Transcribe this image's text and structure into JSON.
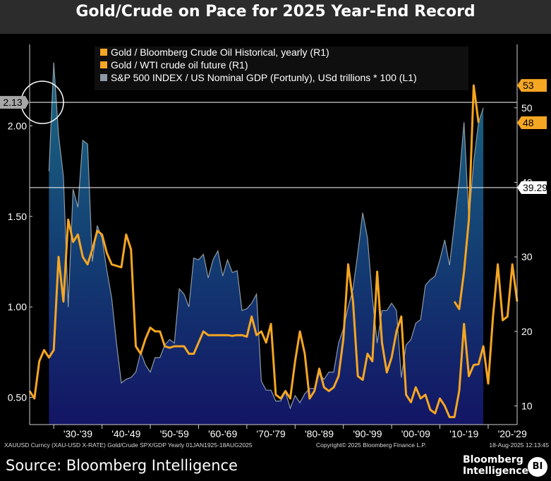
{
  "title": "Gold/Crude on Pace for 2025 Year-End Record",
  "chart_data": {
    "type": "area",
    "x_tick_labels": [
      "'30-'39",
      "'40-'49",
      "'50-'59",
      "'60-'69",
      "'70-'79",
      "'80-'89",
      "'90-'99",
      "'00-'09",
      "'10-'19",
      "'20-'29"
    ],
    "left_axis": {
      "ticks": [
        0.5,
        1.0,
        1.5,
        2.0
      ],
      "tick_labels": [
        "0.50",
        "1.00",
        "1.50",
        "2.00"
      ],
      "range": [
        0.35,
        2.45
      ]
    },
    "right_axis": {
      "ticks": [
        10,
        20,
        30,
        40,
        50
      ],
      "tick_labels": [
        "10",
        "20",
        "30",
        "40",
        "50"
      ],
      "range": [
        7.5,
        58.5
      ]
    },
    "legend": [
      {
        "label": "Gold / Bloomberg Crude Oil Historical, yearly (R1)",
        "color": "#f5a623"
      },
      {
        "label": "Gold / WTI crude oil future (R1)",
        "color": "#f5a623"
      },
      {
        "label": "S&P 500 INDEX / US Nominal GDP (Fortunly), USd trillions * 100 (L1)",
        "color": "#8e9aa6"
      }
    ],
    "annotations": {
      "left_marker": "2.13",
      "left_marker_value": 2.13,
      "right_marker_top": "53",
      "right_marker_top_value": 53,
      "right_marker_mid": "48",
      "right_marker_mid_value": 48,
      "right_line_label": "39.29",
      "right_line_value": 39.29
    },
    "series": [
      {
        "name": "S&P 500 INDEX / US Nominal GDP (Fortunly), USd trillions * 100 (L1)",
        "axis": "left",
        "start_year": 1929,
        "values": [
          1.75,
          2.35,
          1.95,
          1.72,
          1.0,
          1.65,
          1.55,
          1.92,
          1.9,
          1.25,
          1.45,
          1.38,
          1.2,
          1.05,
          0.8,
          0.58,
          0.6,
          0.61,
          0.64,
          0.75,
          0.68,
          0.64,
          0.72,
          0.72,
          0.79,
          0.82,
          0.8,
          1.1,
          1.07,
          1.0,
          1.27,
          1.26,
          1.29,
          1.16,
          1.26,
          1.31,
          1.17,
          1.26,
          1.19,
          1.2,
          0.98,
          0.99,
          1.02,
          1.07,
          0.59,
          0.54,
          0.54,
          0.48,
          0.48,
          0.53,
          0.44,
          0.51,
          0.47,
          0.52,
          0.55,
          0.55,
          0.63,
          0.6,
          0.64,
          0.64,
          0.8,
          0.88,
          1.0,
          1.1,
          1.3,
          1.52,
          1.38,
          1.05,
          0.8,
          0.98,
          0.98,
          1.02,
          0.98,
          0.61,
          0.79,
          0.82,
          0.91,
          0.93,
          1.12,
          1.15,
          1.17,
          1.26,
          1.37,
          1.23,
          1.46,
          1.7,
          2.02,
          1.48,
          1.8,
          2.02,
          2.1
        ]
      },
      {
        "name": "Gold / Bloomberg Crude Oil Historical, yearly (R1)",
        "axis": "right",
        "start_year": 1925,
        "values": [
          12.0,
          11.0,
          16.0,
          17.5,
          16.5,
          17.5,
          30.0,
          24.0,
          35.0,
          32.0,
          33.0,
          30.0,
          29.0,
          31.0,
          33.5,
          33.0,
          30.5,
          29.0,
          28.8,
          28.6,
          33.0,
          31.0,
          18.0,
          17.0,
          19.0,
          20.5,
          20.0,
          20.0,
          18.0,
          17.8,
          18.0,
          18.0,
          18.0,
          17.0,
          17.0,
          18.5,
          20.0,
          19.5,
          19.5,
          19.5,
          19.5,
          19.5,
          19.4,
          19.5,
          19.5,
          19.3,
          22.0,
          19.5,
          20.0,
          18.5,
          21.0,
          11.5,
          11.0,
          12.0,
          11.0,
          16.0,
          20.0,
          17.0,
          11.0,
          12.0,
          15.0,
          12.5,
          12.0,
          12.5,
          14.0,
          19.0,
          29.0,
          24.0,
          14.0,
          13.5,
          17.0,
          16.0,
          28.0,
          18.5,
          14.5,
          16.5,
          20.0,
          22.0,
          11.5,
          10.5,
          12.5,
          11.0,
          11.5,
          9.5,
          9.0,
          11.0,
          10.0,
          8.5,
          8.5,
          12.0,
          21.0,
          14.0,
          15.5,
          15.6,
          18.0,
          13.0,
          22.0,
          29.0,
          21.5,
          22.0,
          29.0,
          24.0
        ]
      },
      {
        "name": "Gold / WTI crude oil future (R1)",
        "axis": "right",
        "start_year": 2013,
        "values": [
          24.0,
          23.0,
          28.0,
          35.0,
          53.0,
          48.0
        ]
      }
    ]
  },
  "footer_meta": {
    "left": "XAUUSD Curncy (XAU-USD X-RATE) Gold/Crude SPX/GDP  Yearly 01JAN1925-18AUG2025",
    "center": "Copyright© 2025 Bloomberg Finance L.P.",
    "right": "18-Aug-2025 12:13:45"
  },
  "source": "Source: Bloomberg Intelligence",
  "logo": {
    "line1": "Bloomberg",
    "line2": "Intelligence",
    "badge": "BI"
  }
}
